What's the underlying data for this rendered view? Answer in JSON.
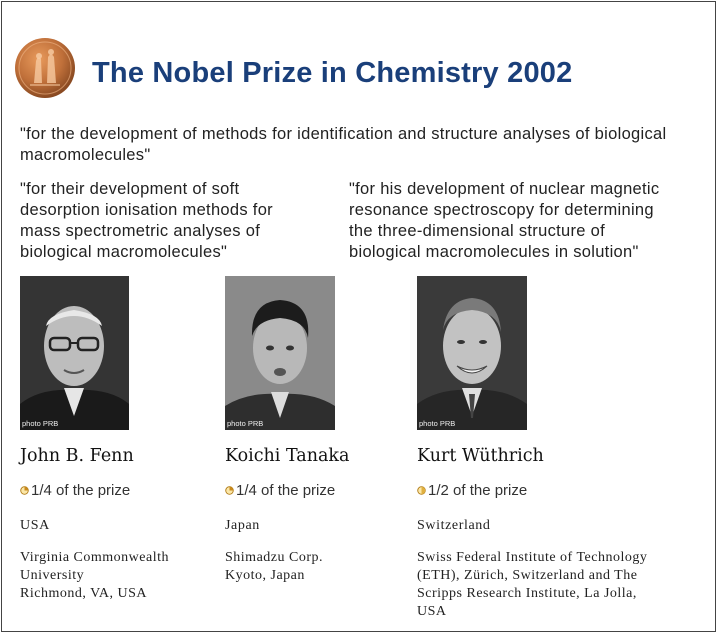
{
  "title": "The Nobel Prize in Chemistry 2002",
  "main_citation": "\"for the development of methods for identification and structure analyses of biological macromolecules\"",
  "citation_left_lines": [
    "\"for their development of soft",
    "desorption ionisation methods for",
    "mass spectrometric analyses of",
    "biological macromolecules\""
  ],
  "citation_right_lines": [
    "\"for his development of nuclear magnetic",
    "resonance spectroscopy for determining",
    "the three-dimensional structure of",
    "biological macromolecules in solution\""
  ],
  "medal_icon": "nobel-medal-icon",
  "laureates": [
    {
      "photo_credit": "photo PRB",
      "name": "John B. Fenn",
      "share": "1/4 of the prize",
      "share_fraction": 0.25,
      "country": "USA",
      "affiliation_lines": [
        "Virginia Commonwealth",
        "University",
        "Richmond, VA, USA"
      ]
    },
    {
      "photo_credit": "photo PRB",
      "name": "Koichi Tanaka",
      "share": "1/4 of the prize",
      "share_fraction": 0.25,
      "country": "Japan",
      "affiliation_lines": [
        "Shimadzu Corp.",
        "Kyoto, Japan"
      ]
    },
    {
      "photo_credit": "photo PRB",
      "name": "Kurt Wüthrich",
      "share": "1/2 of the prize",
      "share_fraction": 0.5,
      "country": "Switzerland",
      "affiliation_lines": [
        "Swiss Federal Institute of Technology",
        "(ETH), Zürich, Switzerland and The",
        "Scripps Research Institute, La Jolla,",
        "USA"
      ]
    }
  ],
  "colors": {
    "title": "#1a3f7a",
    "medal": "#c0703a",
    "share_icon": "#d8a030"
  }
}
